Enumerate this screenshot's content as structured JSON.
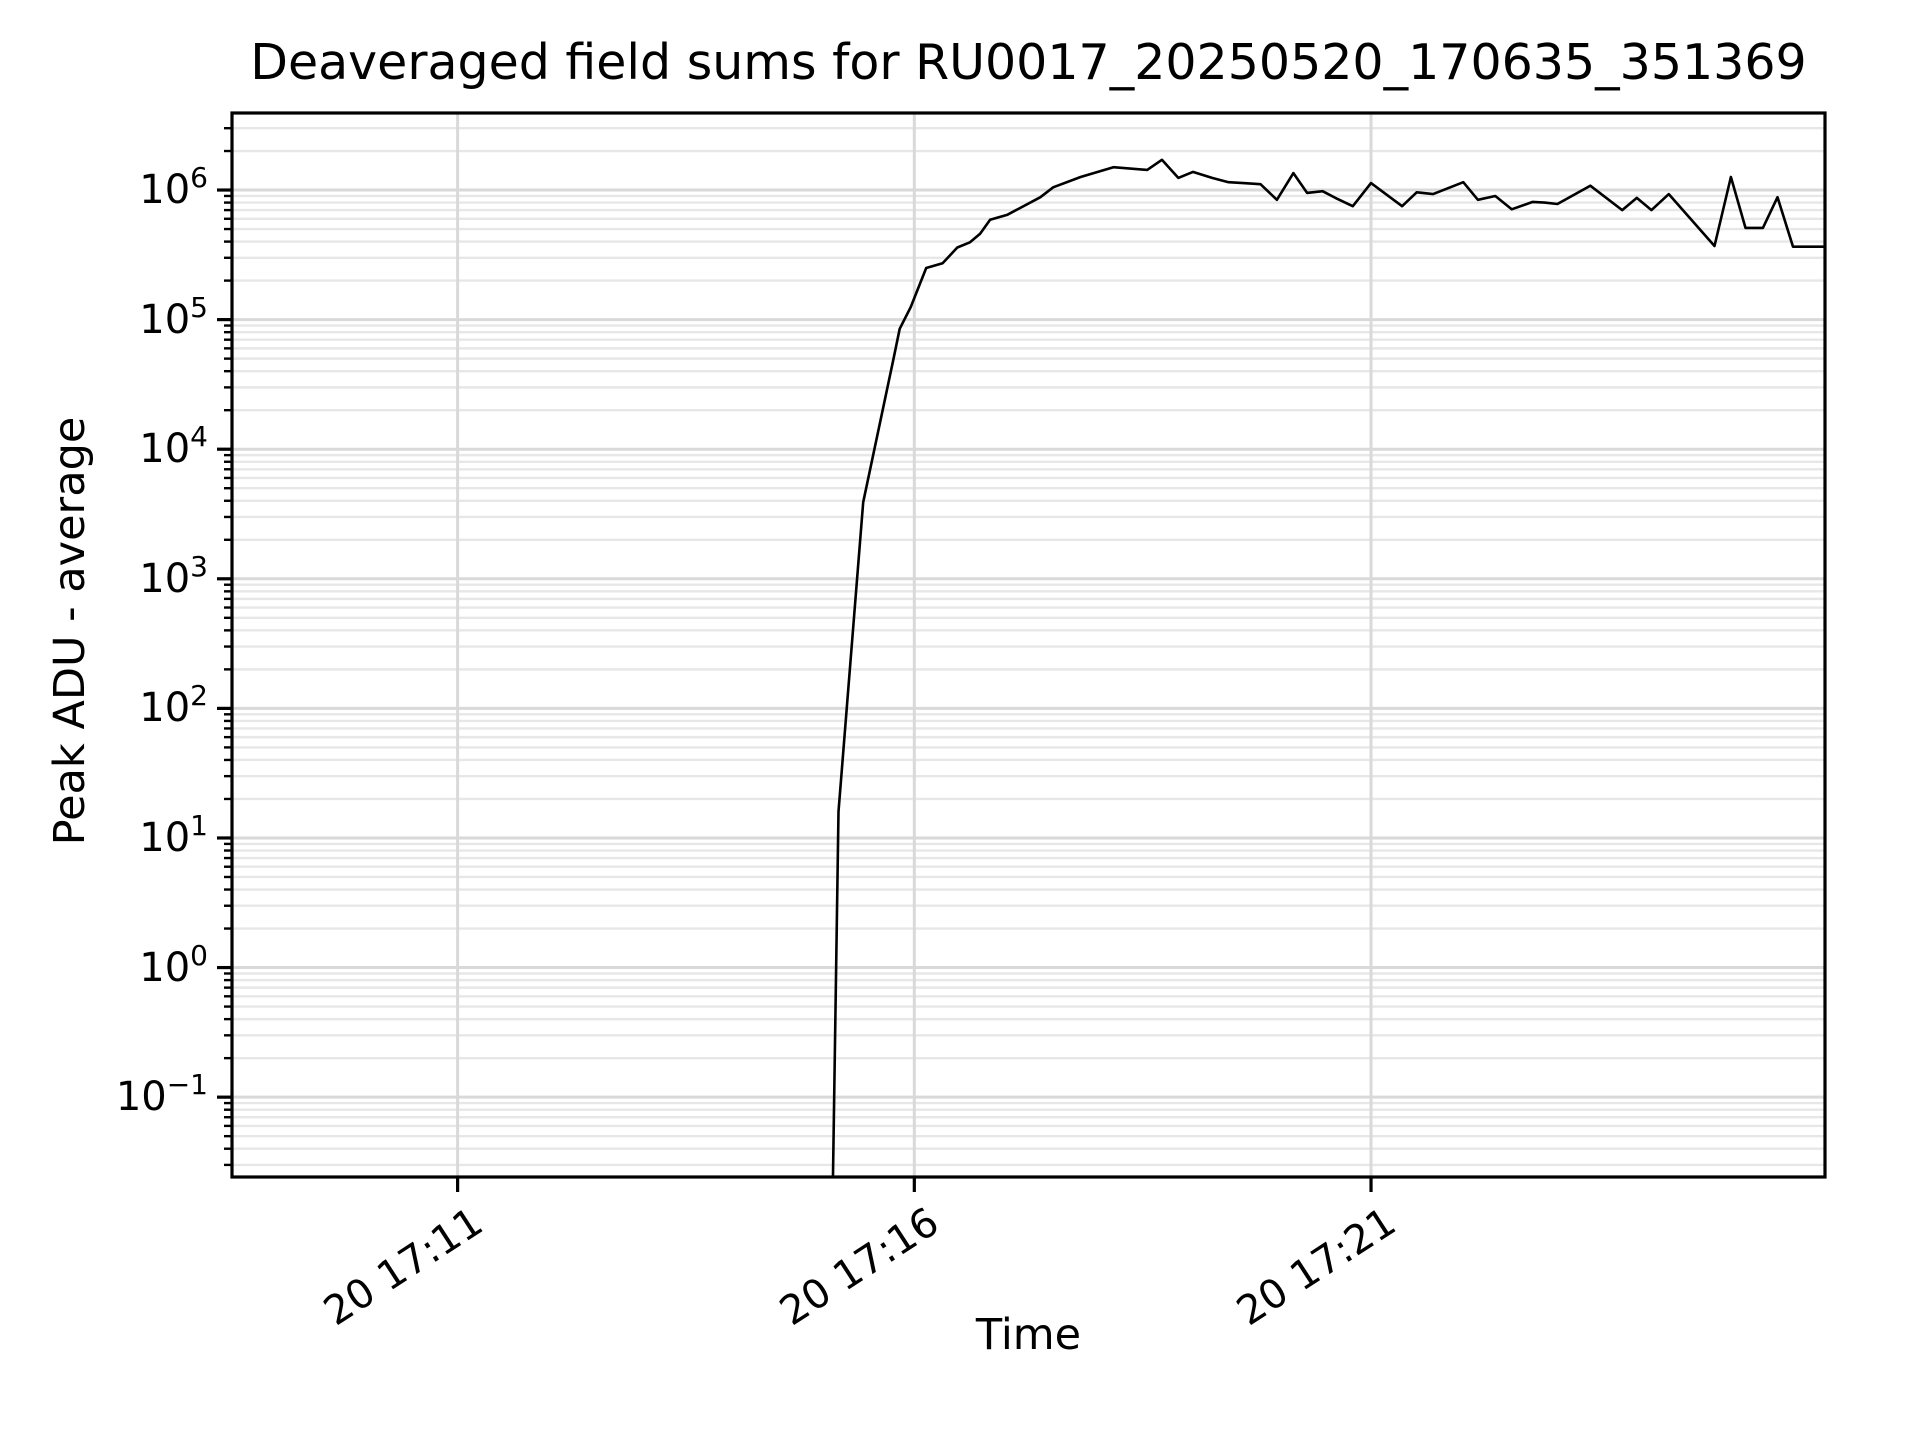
{
  "title": "Deaveraged field sums for RU0017_20250520_170635_351369",
  "axis": {
    "x_label": "Time",
    "y_label": "Peak ADU - average"
  },
  "chart_data": {
    "type": "line",
    "title": "Deaveraged field sums for RU0017_20250520_170635_351369",
    "xlabel": "Time",
    "ylabel": "Peak ADU - average",
    "x_unit": "minutes after 17:00 (day 20)",
    "y_scale": "log",
    "xlim": [
      8.53,
      25.97
    ],
    "ylim": [
      0.0242,
      3930000
    ],
    "grid": "both",
    "legend": "none",
    "line_color": "#000000",
    "background_color": "#ffffff",
    "grid_major_color": "#d9d9d9",
    "grid_minor_color": "#e7e7e7",
    "x_ticks": [
      {
        "t": 11,
        "label": "20 17:11"
      },
      {
        "t": 16,
        "label": "20 17:16"
      },
      {
        "t": 21,
        "label": "20 17:21"
      }
    ],
    "y_ticks": [
      {
        "value": 1000000,
        "base": "10",
        "sup": "6"
      },
      {
        "value": 100000,
        "base": "10",
        "sup": "5"
      },
      {
        "value": 10000,
        "base": "10",
        "sup": "4"
      },
      {
        "value": 1000,
        "base": "10",
        "sup": "3"
      },
      {
        "value": 100,
        "base": "10",
        "sup": "2"
      },
      {
        "value": 10,
        "base": "10",
        "sup": "1"
      },
      {
        "value": 1,
        "base": "10",
        "sup": "0"
      },
      {
        "value": 0.1,
        "base": "10",
        "sup": "−1"
      }
    ],
    "series": [
      {
        "name": "peak ADU - average",
        "points": [
          [
            15.11,
            0.025
          ],
          [
            15.17,
            16
          ],
          [
            15.44,
            3900
          ],
          [
            15.77,
            49000
          ],
          [
            15.84,
            85000
          ],
          [
            15.96,
            125000
          ],
          [
            16.13,
            250000
          ],
          [
            16.31,
            272000
          ],
          [
            16.47,
            360000
          ],
          [
            16.61,
            395000
          ],
          [
            16.72,
            460000
          ],
          [
            16.83,
            590000
          ],
          [
            17.02,
            645000
          ],
          [
            17.38,
            880000
          ],
          [
            17.52,
            1050000
          ],
          [
            17.82,
            1260000
          ],
          [
            18.18,
            1500000
          ],
          [
            18.55,
            1430000
          ],
          [
            18.71,
            1710000
          ],
          [
            18.89,
            1240000
          ],
          [
            19.05,
            1380000
          ],
          [
            19.26,
            1240000
          ],
          [
            19.44,
            1150000
          ],
          [
            19.6,
            1130000
          ],
          [
            19.79,
            1110000
          ],
          [
            19.97,
            840000
          ],
          [
            20.15,
            1350000
          ],
          [
            20.3,
            950000
          ],
          [
            20.47,
            980000
          ],
          [
            20.61,
            870000
          ],
          [
            20.8,
            750000
          ],
          [
            21.0,
            1130000
          ],
          [
            21.34,
            750000
          ],
          [
            21.5,
            960000
          ],
          [
            21.68,
            930000
          ],
          [
            22.01,
            1150000
          ],
          [
            22.17,
            840000
          ],
          [
            22.36,
            900000
          ],
          [
            22.54,
            710000
          ],
          [
            22.77,
            810000
          ],
          [
            22.9,
            800000
          ],
          [
            23.04,
            780000
          ],
          [
            23.4,
            1080000
          ],
          [
            23.75,
            700000
          ],
          [
            23.91,
            870000
          ],
          [
            24.07,
            700000
          ],
          [
            24.26,
            930000
          ],
          [
            24.76,
            370000
          ],
          [
            24.94,
            1260000
          ],
          [
            25.1,
            510000
          ],
          [
            25.29,
            510000
          ],
          [
            25.45,
            880000
          ],
          [
            25.62,
            365000
          ],
          [
            25.97,
            365000
          ]
        ]
      }
    ]
  }
}
